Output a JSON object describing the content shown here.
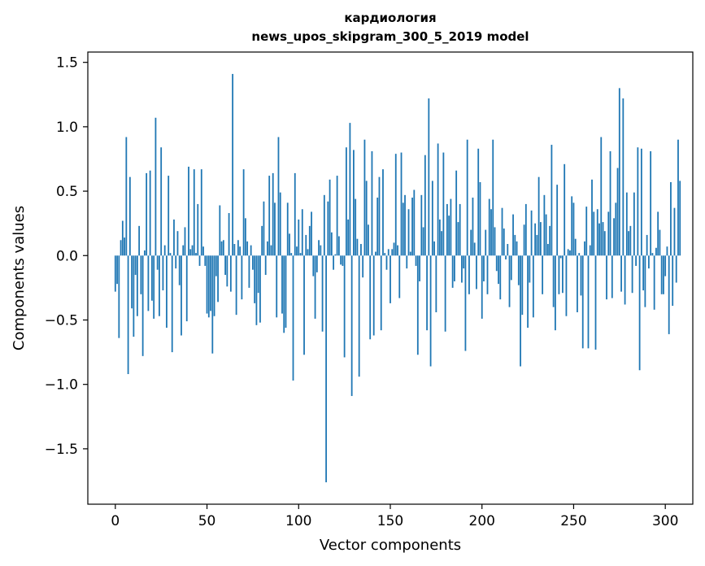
{
  "chart_data": {
    "type": "bar",
    "title": "кардиология",
    "subtitle": "news_upos_skipgram_300_5_2019 model",
    "xlabel": "Vector components",
    "ylabel": "Components values",
    "xlim": [
      -15,
      315
    ],
    "ylim": [
      -1.93,
      1.58
    ],
    "xticks": [
      0,
      50,
      100,
      150,
      200,
      250,
      300
    ],
    "xtick_labels": [
      "0",
      "50",
      "100",
      "150",
      "200",
      "250",
      "300"
    ],
    "yticks": [
      -1.5,
      -1.0,
      -0.5,
      0.0,
      0.5,
      1.0,
      1.5
    ],
    "ytick_labels": [
      "−1.5",
      "−1.0",
      "−0.5",
      "0.0",
      "0.5",
      "1.0",
      "1.5"
    ],
    "grid": false,
    "bar_color": "#1f77b4",
    "values": [
      -0.28,
      -0.22,
      -0.64,
      0.12,
      0.27,
      0.14,
      0.92,
      -0.92,
      0.61,
      -0.41,
      -0.63,
      -0.15,
      -0.47,
      0.23,
      -0.3,
      -0.78,
      0.04,
      0.64,
      -0.43,
      0.66,
      -0.35,
      -0.49,
      1.07,
      -0.11,
      -0.47,
      0.84,
      -0.27,
      0.08,
      -0.56,
      0.62,
      0.02,
      -0.75,
      0.28,
      -0.1,
      0.19,
      -0.23,
      -0.62,
      0.08,
      0.22,
      -0.51,
      0.69,
      0.05,
      0.08,
      0.67,
      0.02,
      0.4,
      -0.08,
      0.67,
      0.07,
      -0.08,
      -0.45,
      -0.48,
      -0.43,
      -0.76,
      -0.47,
      -0.16,
      -0.36,
      0.39,
      0.11,
      0.12,
      -0.15,
      -0.24,
      0.33,
      -0.28,
      1.41,
      0.09,
      -0.46,
      0.12,
      0.07,
      -0.34,
      0.67,
      0.29,
      0.11,
      -0.25,
      0.08,
      -0.11,
      -0.37,
      -0.54,
      -0.29,
      -0.52,
      0.23,
      0.42,
      -0.15,
      0.11,
      0.62,
      0.08,
      0.64,
      0.41,
      -0.48,
      0.92,
      0.49,
      -0.45,
      -0.6,
      -0.56,
      0.41,
      0.17,
      0.02,
      -0.97,
      0.64,
      0.07,
      0.28,
      0.02,
      0.36,
      -0.77,
      0.16,
      0.05,
      0.23,
      0.34,
      -0.16,
      -0.49,
      -0.13,
      0.12,
      0.08,
      -0.59,
      0.47,
      -1.76,
      0.42,
      0.59,
      0.18,
      -0.11,
      0.01,
      0.62,
      0.15,
      -0.07,
      -0.08,
      -0.79,
      0.84,
      0.28,
      1.03,
      -1.09,
      0.82,
      0.44,
      0.13,
      -0.94,
      0.09,
      -0.17,
      0.9,
      0.58,
      0.24,
      -0.65,
      0.81,
      -0.62,
      0.03,
      0.45,
      0.61,
      -0.58,
      0.67,
      0.02,
      -0.11,
      0.05,
      -0.37,
      0.05,
      0.1,
      0.79,
      0.08,
      -0.33,
      0.8,
      0.41,
      0.47,
      -0.1,
      0.36,
      0.03,
      0.45,
      0.51,
      -0.08,
      -0.77,
      -0.2,
      0.47,
      0.22,
      0.78,
      -0.58,
      1.22,
      -0.86,
      0.58,
      0.11,
      -0.44,
      0.87,
      0.28,
      0.19,
      0.8,
      -0.59,
      0.4,
      0.31,
      0.44,
      -0.25,
      -0.2,
      0.66,
      0.26,
      0.4,
      -0.21,
      -0.1,
      -0.74,
      0.9,
      -0.3,
      0.2,
      0.45,
      0.1,
      -0.26,
      0.83,
      0.57,
      -0.49,
      -0.2,
      0.2,
      -0.3,
      0.44,
      0.36,
      0.9,
      0.22,
      -0.12,
      -0.22,
      -0.34,
      0.37,
      0.21,
      -0.03,
      0.09,
      -0.4,
      -0.19,
      0.32,
      0.16,
      0.11,
      -0.23,
      -0.86,
      -0.46,
      0.24,
      0.4,
      -0.56,
      -0.21,
      0.35,
      -0.48,
      0.25,
      0.16,
      0.61,
      0.26,
      -0.3,
      0.47,
      0.32,
      0.09,
      0.23,
      0.86,
      -0.4,
      -0.58,
      0.55,
      -0.3,
      -0.02,
      -0.29,
      0.71,
      -0.47,
      0.05,
      0.04,
      0.46,
      0.41,
      0.13,
      -0.44,
      0.02,
      -0.31,
      -0.72,
      0.11,
      0.38,
      -0.72,
      0.08,
      0.59,
      0.34,
      -0.73,
      0.36,
      0.25,
      0.92,
      0.26,
      0.19,
      -0.34,
      0.34,
      0.81,
      -0.33,
      0.29,
      0.41,
      0.68,
      1.3,
      -0.28,
      1.22,
      -0.38,
      0.49,
      0.19,
      0.23,
      -0.29,
      0.49,
      -0.08,
      0.84,
      -0.89,
      0.83,
      -0.27,
      -0.4,
      0.16,
      -0.1,
      0.81,
      0.02,
      -0.42,
      0.06,
      0.34,
      0.2,
      -0.3,
      -0.3,
      -0.16,
      0.07,
      -0.61,
      0.57,
      -0.39,
      0.37,
      -0.21,
      0.9,
      0.58
    ]
  }
}
